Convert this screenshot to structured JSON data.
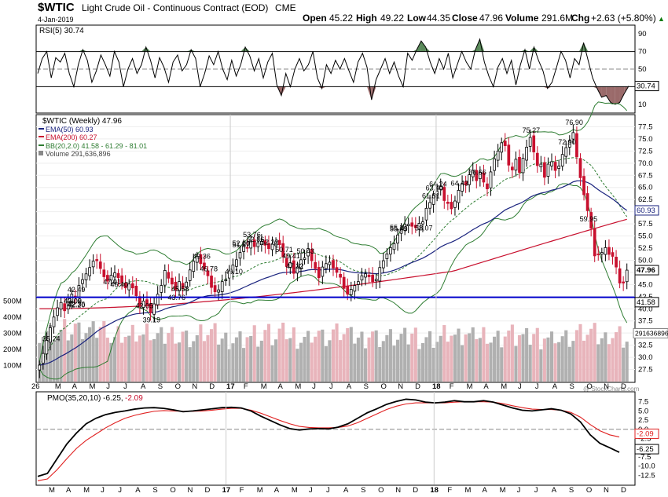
{
  "header": {
    "symbol": "$WTIC",
    "name": "Light Crude Oil - Continuous Contract (EOD)",
    "exchange": "CME",
    "date": "4-Jan-2019",
    "open_label": "Open",
    "open": "45.22",
    "high_label": "High",
    "high": "49.22",
    "low_label": "Low",
    "low": "44.35",
    "close_label": "Close",
    "close": "47.96",
    "volume_label": "Volume",
    "volume": "291.6M",
    "chg_label": "Chg",
    "chg": "+2.63 (+5.80%)",
    "watermark": "@ StockCharts.com"
  },
  "colors": {
    "up": "#000000",
    "down": "#c8102e",
    "rsi_fill_up": "#5a8a5a",
    "rsi_fill_down": "#9a6a6a",
    "ema50": "#1a237e",
    "ema200": "#c8102e",
    "bb": "#2e7d32",
    "vol_up": "#b0b0b0",
    "vol_down": "#e8b4bb",
    "support": "#0000cc"
  },
  "chart_data": [
    {
      "type": "line",
      "title": "RSI(5) 30.74",
      "ylim": [
        0,
        100
      ],
      "y_ticks": [
        10,
        30,
        50,
        70,
        90
      ],
      "reference_lines": [
        30,
        70
      ],
      "last_value_label": "30.74",
      "values": [
        45,
        62,
        70,
        40,
        63,
        58,
        68,
        45,
        30,
        55,
        72,
        60,
        35,
        48,
        66,
        55,
        42,
        70,
        58,
        30,
        50,
        62,
        45,
        55,
        75,
        60,
        40,
        63,
        52,
        35,
        58,
        66,
        48,
        55,
        72,
        62,
        30,
        45,
        65,
        55,
        70,
        50,
        38,
        60,
        42,
        55,
        75,
        65,
        48,
        62,
        40,
        58,
        68,
        32,
        20,
        45,
        30,
        50,
        62,
        48,
        55,
        70,
        40,
        28,
        55,
        45,
        60,
        50,
        62,
        48,
        35,
        58,
        68,
        52,
        15,
        38,
        50,
        62,
        45,
        58,
        42,
        30,
        68,
        60,
        72,
        82,
        75,
        58,
        45,
        62,
        50,
        68,
        40,
        55,
        70,
        58,
        50,
        72,
        84,
        58,
        42,
        30,
        52,
        62,
        45,
        60,
        32,
        55,
        72,
        50,
        75,
        60,
        48,
        28,
        35,
        52,
        70,
        60,
        40,
        62,
        55,
        80,
        60,
        40,
        28,
        18,
        20,
        12,
        10,
        12,
        22,
        30.74
      ]
    },
    {
      "type": "candlestick",
      "title": "$WTIC (Weekly) 47.96",
      "ylim": [
        25,
        80
      ],
      "y_ticks": [
        27.5,
        30,
        32.5,
        35,
        37.5,
        40,
        42.5,
        45,
        47.5,
        50,
        52.5,
        55,
        57.5,
        60,
        62.5,
        65,
        67.5,
        70,
        72.5,
        75,
        77.5
      ],
      "x_ticks": [
        "26",
        "M",
        "A",
        "M",
        "J",
        "J",
        "A",
        "S",
        "O",
        "N",
        "D",
        "17",
        "F",
        "M",
        "A",
        "M",
        "J",
        "J",
        "A",
        "S",
        "O",
        "N",
        "D",
        "18",
        "F",
        "M",
        "A",
        "M",
        "J",
        "J",
        "A",
        "S",
        "O",
        "N",
        "D"
      ],
      "closes": [
        28.4,
        30.8,
        33.5,
        36.1,
        38.3,
        40.2,
        41.3,
        39.6,
        41.4,
        43.0,
        42.5,
        44.8,
        46.0,
        47.2,
        48.5,
        49.8,
        49.9,
        48.3,
        46.6,
        45.7,
        46.9,
        47.4,
        46.4,
        45.3,
        44.3,
        45.1,
        44.3,
        42.7,
        40.6,
        41.6,
        40.8,
        39.2,
        41.0,
        43.0,
        44.8,
        47.9,
        46.3,
        45.1,
        43.9,
        45.6,
        44.2,
        45.5,
        48.0,
        49.8,
        50.8,
        49.3,
        48.2,
        46.8,
        44.4,
        43.5,
        43.9,
        45.6,
        46.0,
        47.8,
        49.0,
        50.1,
        51.6,
        53.0,
        52.6,
        53.8,
        52.8,
        53.6,
        53.9,
        53.1,
        52.4,
        53.3,
        53.8,
        53.2,
        50.7,
        48.7,
        49.5,
        47.3,
        48.6,
        50.1,
        50.5,
        52.4,
        49.9,
        48.3,
        46.4,
        48.6,
        49.3,
        49.6,
        48.4,
        47.5,
        46.5,
        44.2,
        43.0,
        44.0,
        44.8,
        45.6,
        46.8,
        47.2,
        46.6,
        45.6,
        46.1,
        48.5,
        49.9,
        51.3,
        52.6,
        53.4,
        55.2,
        56.4,
        57.4,
        57.4,
        57.0,
        56.7,
        57.6,
        57.9,
        60.7,
        61.9,
        63.4,
        64.2,
        65.2,
        62.3,
        61.7,
        60.6,
        62.2,
        64.4,
        65.8,
        65.5,
        67.6,
        68.5,
        66.4,
        68.1,
        66.1,
        64.7,
        68.2,
        70.9,
        72.5,
        74.2,
        73.6,
        69.6,
        68.6,
        70.8,
        68.1,
        71.0,
        73.3,
        75.3,
        72.3,
        69.5,
        69.8,
        67.1,
        69.8,
        70.3,
        68.5,
        69.4,
        71.8,
        73.2,
        74.6,
        76.3,
        71.3,
        67.0,
        63.5,
        60.2,
        56.6,
        50.9,
        51.2,
        51.6,
        52.6,
        51.2,
        50.8,
        48.6,
        45.3,
        45.3,
        47.96
      ],
      "peak_labels": [
        {
          "label": "42.49"
        },
        {
          "label": "46.78"
        },
        {
          "label": "51.67"
        },
        {
          "label": "49.36"
        },
        {
          "label": "52.22"
        },
        {
          "label": "55.24"
        },
        {
          "label": "55.03"
        },
        {
          "label": "53.76"
        },
        {
          "label": "52.00"
        },
        {
          "label": "50.43"
        },
        {
          "label": "52.86"
        },
        {
          "label": "66.66"
        },
        {
          "label": "64.24"
        },
        {
          "label": "72.90"
        },
        {
          "label": "75.27"
        },
        {
          "label": "76.90"
        },
        {
          "label": "49.41"
        },
        {
          "label": "47.32"
        },
        {
          "label": "50.71"
        },
        {
          "label": "61.81"
        },
        {
          "label": "63.40"
        },
        {
          "label": "64.43"
        }
      ],
      "trough_labels": [
        {
          "label": "43.03"
        },
        {
          "label": "46.40"
        },
        {
          "label": "43.00"
        },
        {
          "label": "39.19"
        },
        {
          "label": "35.24"
        },
        {
          "label": "42.20"
        },
        {
          "label": "47.01"
        },
        {
          "label": "43.76"
        },
        {
          "label": "42.05"
        },
        {
          "label": "45.58"
        },
        {
          "label": "49.10"
        },
        {
          "label": "58.07"
        },
        {
          "label": "59.95"
        },
        {
          "label": "42.36"
        }
      ],
      "series": [
        {
          "name": "EMA(50) 60.93",
          "last": "60.93"
        },
        {
          "name": "EMA(200) 60.27"
        },
        {
          "name": "BB(20,2.0) 41.58 - 61.29 - 81.01",
          "last": "41.58"
        },
        {
          "name": "Volume 291,636,896",
          "last": "291636896"
        }
      ],
      "last_close_label": "47.96",
      "support_line": 42.36
    },
    {
      "type": "bar",
      "title": "Volume",
      "ylim": [
        0,
        600
      ],
      "y_ticks": [
        "100M",
        "200M",
        "300M",
        "400M",
        "500M"
      ],
      "y_tick_values": [
        100,
        200,
        300,
        400,
        500
      ],
      "last_label": "291636896"
    },
    {
      "type": "line",
      "title": "PMO(35,20,10) -6.25, -2.09",
      "title_main": "PMO(35,20,10) -6.25,",
      "title_signal": "-2.09",
      "ylim": [
        -15,
        10
      ],
      "y_ticks": [
        -12.5,
        -10.0,
        -7.5,
        -5.0,
        -2.5,
        0.0,
        2.5,
        5.0,
        7.5
      ],
      "y_tick_labels": [
        "-12.5",
        "-10.0",
        "-7.5",
        "-5.0",
        "-2.5",
        "0.0",
        "2.5",
        "5.0",
        "7.5"
      ],
      "x_ticks": [
        "M",
        "A",
        "M",
        "J",
        "J",
        "A",
        "S",
        "O",
        "N",
        "D",
        "17",
        "F",
        "M",
        "A",
        "M",
        "J",
        "J",
        "A",
        "S",
        "O",
        "N",
        "D",
        "18",
        "F",
        "M",
        "A",
        "M",
        "J",
        "J",
        "A",
        "S",
        "O",
        "N",
        "D"
      ],
      "series": [
        {
          "name": "PMO",
          "last": "-6.25",
          "points": [
            [
              0,
              -12.8
            ],
            [
              4,
              -12
            ],
            [
              8,
              -8
            ],
            [
              12,
              -4
            ],
            [
              16,
              -1
            ],
            [
              20,
              1.5
            ],
            [
              24,
              3
            ],
            [
              28,
              4
            ],
            [
              32,
              4.6
            ],
            [
              36,
              5
            ],
            [
              40,
              5.5
            ],
            [
              44,
              5.8
            ],
            [
              48,
              5.9
            ],
            [
              52,
              5.7
            ],
            [
              56,
              5.3
            ],
            [
              60,
              4.8
            ],
            [
              64,
              5
            ],
            [
              68,
              5.3
            ],
            [
              72,
              5.6
            ],
            [
              76,
              5.9
            ],
            [
              80,
              6
            ],
            [
              84,
              5.8
            ],
            [
              88,
              5
            ],
            [
              92,
              3.6
            ],
            [
              96,
              2.4
            ],
            [
              100,
              1.2
            ],
            [
              104,
              0.2
            ],
            [
              108,
              -0.2
            ],
            [
              112,
              0.1
            ],
            [
              116,
              0.2
            ],
            [
              120,
              0.1
            ],
            [
              124,
              0.6
            ],
            [
              128,
              1.5
            ],
            [
              132,
              3
            ],
            [
              136,
              4.5
            ],
            [
              140,
              5.6
            ],
            [
              144,
              6.8
            ],
            [
              148,
              7.6
            ],
            [
              152,
              8.2
            ],
            [
              156,
              8
            ],
            [
              160,
              7.4
            ],
            [
              164,
              7.2
            ],
            [
              168,
              7.4
            ],
            [
              172,
              7.8
            ],
            [
              176,
              7.5
            ],
            [
              180,
              7.5
            ],
            [
              184,
              7.8
            ],
            [
              188,
              7.4
            ],
            [
              192,
              6.6
            ],
            [
              196,
              5.8
            ],
            [
              200,
              5.2
            ],
            [
              204,
              5
            ],
            [
              208,
              5.3
            ],
            [
              212,
              5.6
            ],
            [
              216,
              5.2
            ],
            [
              220,
              4.2
            ],
            [
              224,
              2
            ],
            [
              228,
              -1.5
            ],
            [
              232,
              -3.8
            ],
            [
              236,
              -5
            ],
            [
              240,
              -6.25
            ]
          ]
        },
        {
          "name": "Signal",
          "last": "-2.09",
          "points": [
            [
              0,
              -14
            ],
            [
              4,
              -13.5
            ],
            [
              8,
              -11
            ],
            [
              12,
              -8
            ],
            [
              16,
              -5.2
            ],
            [
              20,
              -3
            ],
            [
              24,
              -1.3
            ],
            [
              28,
              0.4
            ],
            [
              32,
              1.8
            ],
            [
              36,
              3
            ],
            [
              40,
              3.8
            ],
            [
              44,
              4.4
            ],
            [
              48,
              4.9
            ],
            [
              52,
              5.1
            ],
            [
              56,
              5
            ],
            [
              60,
              4.9
            ],
            [
              64,
              4.9
            ],
            [
              68,
              5
            ],
            [
              72,
              5.2
            ],
            [
              76,
              5.5
            ],
            [
              80,
              5.7
            ],
            [
              84,
              5.7
            ],
            [
              88,
              5.2
            ],
            [
              92,
              4.4
            ],
            [
              96,
              3.4
            ],
            [
              100,
              2.4
            ],
            [
              104,
              1.5
            ],
            [
              108,
              0.8
            ],
            [
              112,
              0.5
            ],
            [
              116,
              0.4
            ],
            [
              120,
              0.4
            ],
            [
              124,
              0.5
            ],
            [
              128,
              0.9
            ],
            [
              132,
              1.8
            ],
            [
              136,
              3
            ],
            [
              140,
              4.2
            ],
            [
              144,
              5.4
            ],
            [
              148,
              6.3
            ],
            [
              152,
              6.9
            ],
            [
              156,
              7.2
            ],
            [
              160,
              7.2
            ],
            [
              164,
              7.2
            ],
            [
              168,
              7.2
            ],
            [
              172,
              7.4
            ],
            [
              176,
              7.5
            ],
            [
              180,
              7.5
            ],
            [
              184,
              7.5
            ],
            [
              188,
              7.4
            ],
            [
              192,
              7
            ],
            [
              196,
              6.4
            ],
            [
              200,
              5.9
            ],
            [
              204,
              5.5
            ],
            [
              208,
              5.4
            ],
            [
              212,
              5.4
            ],
            [
              216,
              5.2
            ],
            [
              220,
              4.6
            ],
            [
              224,
              3.3
            ],
            [
              228,
              1.3
            ],
            [
              232,
              -0.4
            ],
            [
              236,
              -1.5
            ],
            [
              240,
              -2.09
            ]
          ]
        }
      ]
    }
  ]
}
